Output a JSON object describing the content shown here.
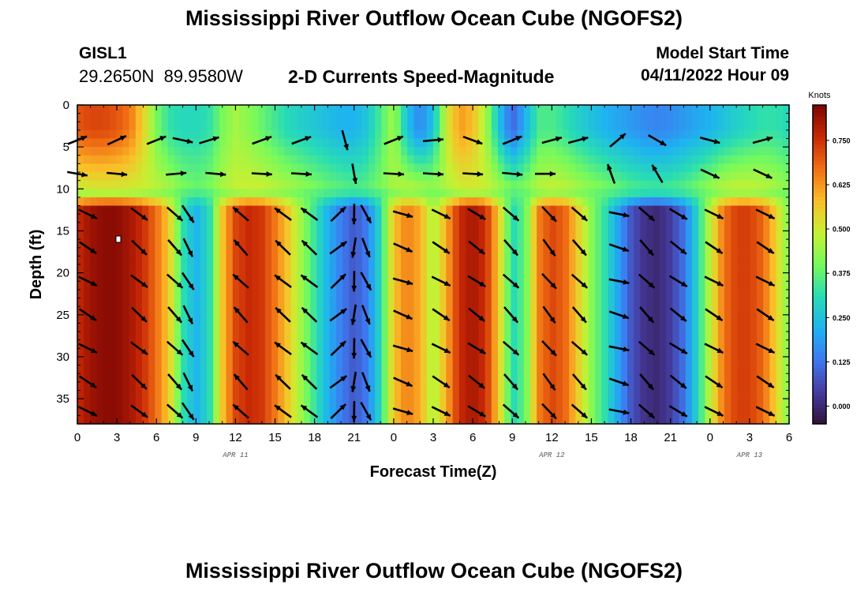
{
  "header": {
    "title": "Mississippi River Outflow Ocean Cube (NGOFS2)",
    "station_id": "GISL1",
    "station_coords": "29.2650N  89.9580W",
    "subtitle": "2-D Currents Speed-Magnitude",
    "model_start_label": "Model Start Time",
    "model_start_value": "04/11/2022 Hour 09"
  },
  "footer": {
    "title": "Mississippi River Outflow Ocean Cube (NGOFS2)"
  },
  "chart_data": {
    "type": "heatmap",
    "title": "2-D Currents Speed-Magnitude",
    "xlabel": "Forecast Time(Z)",
    "ylabel": "Depth (ft)",
    "x_range_hours": [
      0,
      54
    ],
    "y_range": [
      0,
      38
    ],
    "y_inverted": true,
    "x_tick_labels": [
      "0",
      "3",
      "6",
      "9",
      "12",
      "15",
      "18",
      "21",
      "0",
      "3",
      "6",
      "9",
      "12",
      "15",
      "18",
      "21",
      "0",
      "3",
      "6"
    ],
    "y_ticks": [
      0,
      5,
      10,
      15,
      20,
      25,
      30,
      35
    ],
    "date_labels": [
      {
        "label": "APR 11",
        "hour": 12
      },
      {
        "label": "APR 12",
        "hour": 36
      },
      {
        "label": "APR 13",
        "hour": 51
      }
    ],
    "colorbar": {
      "title": "Knots",
      "min": -0.05,
      "max": 0.85,
      "ticks": [
        "0.000",
        "0.125",
        "0.250",
        "0.375",
        "0.500",
        "0.625",
        "0.750"
      ],
      "tick_values": [
        0,
        0.125,
        0.25,
        0.375,
        0.5,
        0.625,
        0.75
      ]
    },
    "speed_profile": {
      "hour": [
        0,
        1,
        2,
        3,
        4,
        5,
        6,
        7,
        8,
        9,
        10,
        11,
        12,
        13,
        14,
        15,
        16,
        17,
        18,
        19,
        20,
        21,
        22,
        23,
        24,
        25,
        26,
        27,
        28,
        29,
        30,
        31,
        32,
        33,
        34,
        35,
        36,
        37,
        38,
        39,
        40,
        41,
        42,
        43,
        44,
        45,
        46,
        47,
        48,
        49,
        50,
        51,
        52,
        53,
        54
      ],
      "speed_knots": [
        0.76,
        0.81,
        0.83,
        0.83,
        0.8,
        0.75,
        0.67,
        0.55,
        0.32,
        0.22,
        0.3,
        0.57,
        0.72,
        0.76,
        0.74,
        0.66,
        0.56,
        0.44,
        0.33,
        0.22,
        0.14,
        0.08,
        0.14,
        0.3,
        0.57,
        0.65,
        0.6,
        0.45,
        0.6,
        0.76,
        0.8,
        0.75,
        0.55,
        0.3,
        0.38,
        0.65,
        0.72,
        0.68,
        0.55,
        0.42,
        0.32,
        0.2,
        0.08,
        0.02,
        0.0,
        0.04,
        0.12,
        0.28,
        0.48,
        0.66,
        0.73,
        0.73,
        0.68,
        0.55,
        0.4
      ]
    },
    "shallow_layer_speed_knots": 0.38,
    "surface_speed": {
      "hour": [
        0,
        1,
        2,
        3,
        4,
        5,
        6,
        7,
        8,
        9,
        10,
        11,
        12,
        13,
        14,
        15,
        16,
        17,
        18,
        19,
        20,
        21,
        22,
        23,
        24,
        25,
        26,
        27,
        28,
        29,
        30,
        31,
        32,
        33,
        34,
        35,
        36,
        37,
        38,
        39,
        40,
        41,
        42,
        43,
        44,
        45,
        46,
        47,
        48,
        49,
        50,
        51,
        52,
        53,
        54
      ],
      "speed_knots": [
        0.7,
        0.72,
        0.72,
        0.7,
        0.66,
        0.55,
        0.4,
        0.32,
        0.3,
        0.3,
        0.32,
        0.4,
        0.45,
        0.42,
        0.38,
        0.34,
        0.3,
        0.28,
        0.26,
        0.24,
        0.22,
        0.22,
        0.26,
        0.35,
        0.45,
        0.25,
        0.15,
        0.25,
        0.5,
        0.62,
        0.58,
        0.45,
        0.25,
        0.1,
        0.22,
        0.35,
        0.35,
        0.32,
        0.28,
        0.25,
        0.22,
        0.2,
        0.18,
        0.16,
        0.15,
        0.16,
        0.18,
        0.2,
        0.22,
        0.25,
        0.28,
        0.3,
        0.32,
        0.32,
        0.3
      ]
    },
    "vectors_surface_deg": [
      [
        0,
        22
      ],
      [
        3,
        25
      ],
      [
        6,
        22
      ],
      [
        8,
        -12
      ],
      [
        10,
        17
      ],
      [
        14,
        20
      ],
      [
        17,
        20
      ],
      [
        20.3,
        -75
      ],
      [
        24,
        22
      ],
      [
        27,
        5
      ],
      [
        30,
        -20
      ],
      [
        33,
        22
      ],
      [
        36,
        15
      ],
      [
        38,
        15
      ],
      [
        41,
        40
      ],
      [
        44,
        -30
      ],
      [
        48,
        -15
      ],
      [
        52,
        15
      ]
    ],
    "vectors_mid_deg": [
      [
        0,
        -10
      ],
      [
        3,
        -5
      ],
      [
        7.5,
        5
      ],
      [
        10.5,
        -5
      ],
      [
        14,
        -3
      ],
      [
        17,
        -3
      ],
      [
        21,
        -80
      ],
      [
        24,
        -3
      ],
      [
        27,
        -3
      ],
      [
        30,
        -3
      ],
      [
        33,
        -5
      ],
      [
        35.5,
        0
      ],
      [
        40.5,
        110
      ],
      [
        44,
        120
      ],
      [
        48,
        -25
      ],
      [
        52,
        -25
      ]
    ],
    "vectors_deep_by_hour_deg": [
      [
        0.8,
        -30
      ],
      [
        4.7,
        -40
      ],
      [
        7.4,
        -45
      ],
      [
        8.4,
        -60
      ],
      [
        12.4,
        135
      ],
      [
        15.6,
        140
      ],
      [
        17.6,
        140
      ],
      [
        19.8,
        40
      ],
      [
        21,
        -95
      ],
      [
        21.9,
        -65
      ],
      [
        24.7,
        -20
      ],
      [
        27.6,
        -30
      ],
      [
        30.3,
        -35
      ],
      [
        32.9,
        -45
      ],
      [
        35.8,
        -50
      ],
      [
        38.1,
        -45
      ],
      [
        41.1,
        -15
      ],
      [
        43.2,
        -45
      ],
      [
        45.6,
        -35
      ],
      [
        48.3,
        -30
      ],
      [
        52.2,
        -30
      ]
    ]
  }
}
